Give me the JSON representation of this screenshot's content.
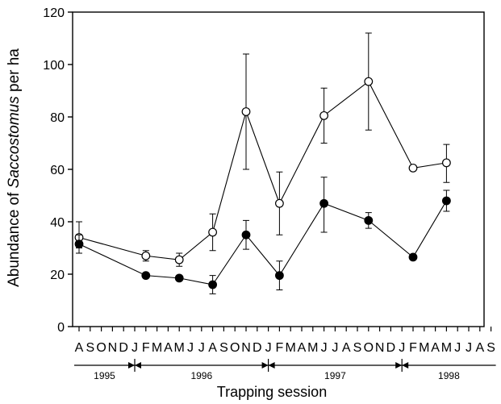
{
  "chart_data": {
    "type": "line",
    "title": "",
    "ylabel_prefix": "Abundance of ",
    "ylabel_italic": "Saccostomus",
    "ylabel_suffix": " per ha",
    "xlabel": "Trapping session",
    "ylim": [
      0,
      120
    ],
    "yticks": [
      0,
      20,
      40,
      60,
      80,
      100,
      120
    ],
    "month_letters": [
      "A",
      "S",
      "O",
      "N",
      "D",
      "J",
      "F",
      "M",
      "A",
      "M",
      "J",
      "J",
      "A",
      "S",
      "O",
      "N",
      "D",
      "J",
      "F",
      "M",
      "A",
      "M",
      "J",
      "J",
      "A",
      "S",
      "O",
      "N",
      "D",
      "J",
      "F",
      "M",
      "A",
      "M",
      "J",
      "J",
      "A",
      "S"
    ],
    "years": [
      {
        "label": "1995",
        "start": 0,
        "end": 5
      },
      {
        "label": "1996",
        "start": 5,
        "end": 17
      },
      {
        "label": "1997",
        "start": 17,
        "end": 29
      },
      {
        "label": "1998",
        "start": 29,
        "end": 37
      }
    ],
    "grid": false,
    "series": [
      {
        "marker": "open-circle",
        "points": [
          {
            "x": 0,
            "y": 34,
            "err_hi": 40,
            "err_lo": 30
          },
          {
            "x": 6,
            "y": 27,
            "err_hi": 29,
            "err_lo": 25
          },
          {
            "x": 9,
            "y": 25.5,
            "err_hi": 28,
            "err_lo": 23
          },
          {
            "x": 12,
            "y": 36,
            "err_hi": 43,
            "err_lo": 29
          },
          {
            "x": 15,
            "y": 82,
            "err_hi": 104,
            "err_lo": 60
          },
          {
            "x": 18,
            "y": 47,
            "err_hi": 59,
            "err_lo": 35
          },
          {
            "x": 22,
            "y": 80.5,
            "err_hi": 91,
            "err_lo": 70
          },
          {
            "x": 26,
            "y": 93.5,
            "err_hi": 112,
            "err_lo": 75
          },
          {
            "x": 30,
            "y": 60.5
          },
          {
            "x": 33,
            "y": 62.5,
            "err_hi": 69.5,
            "err_lo": 55
          }
        ]
      },
      {
        "marker": "filled-circle",
        "points": [
          {
            "x": 0,
            "y": 31.5,
            "err_hi": 35,
            "err_lo": 28
          },
          {
            "x": 6,
            "y": 19.5
          },
          {
            "x": 9,
            "y": 18.5
          },
          {
            "x": 12,
            "y": 16,
            "err_hi": 19.5,
            "err_lo": 12.5
          },
          {
            "x": 15,
            "y": 35,
            "err_hi": 40.5,
            "err_lo": 29.5
          },
          {
            "x": 18,
            "y": 19.5,
            "err_hi": 25,
            "err_lo": 14
          },
          {
            "x": 22,
            "y": 47,
            "err_hi": 57,
            "err_lo": 36
          },
          {
            "x": 26,
            "y": 40.5,
            "err_hi": 43.5,
            "err_lo": 37.5
          },
          {
            "x": 30,
            "y": 26.5
          },
          {
            "x": 33,
            "y": 48,
            "err_hi": 52,
            "err_lo": 44
          }
        ]
      }
    ]
  }
}
